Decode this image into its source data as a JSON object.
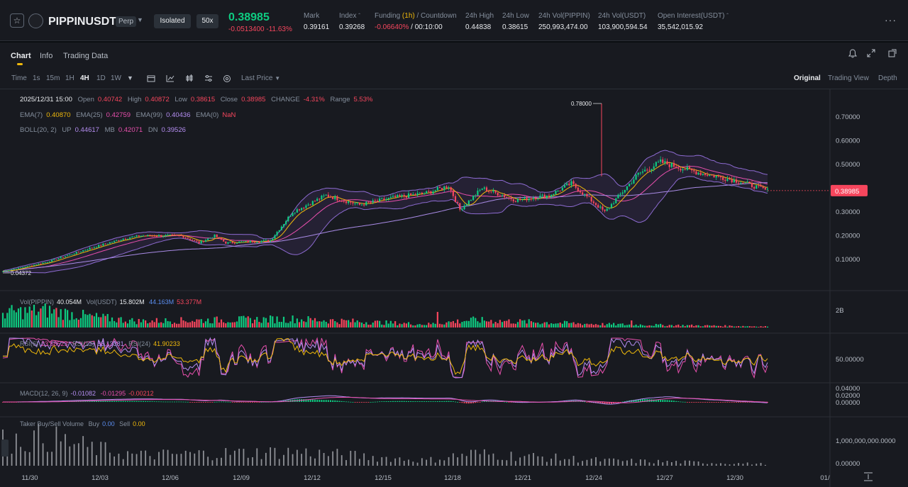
{
  "header": {
    "symbol": "PIPPINUSDT",
    "contract_type": "Perp",
    "margin_mode": "Isolated",
    "leverage": "50x",
    "last_price": "0.38985",
    "change": "-0.0513400 -11.63%",
    "stats": [
      {
        "label": "Mark",
        "value": "0.39161"
      },
      {
        "label": "Index",
        "value": "0.39268"
      },
      {
        "label": "Funding",
        "label_hl": "(1h)",
        "label_tail": "/ Countdown",
        "value_red": "-0.06640%",
        "value_tail": "/ 00:10:00"
      },
      {
        "label": "24h High",
        "value": "0.44838"
      },
      {
        "label": "24h Low",
        "value": "0.38615"
      },
      {
        "label": "24h Vol(PIPPIN)",
        "value": "250,993,474.00"
      },
      {
        "label": "24h Vol(USDT)",
        "value": "103,900,594.54"
      },
      {
        "label": "Open Interest(USDT)",
        "value": "35,542,015.92"
      }
    ]
  },
  "tabs": [
    "Chart",
    "Info",
    "Trading Data"
  ],
  "toolbar": {
    "intervals": [
      "Time",
      "1s",
      "15m",
      "1H",
      "4H",
      "1D",
      "1W"
    ],
    "active_interval": "4H",
    "price_type": "Last Price",
    "views": [
      "Original",
      "Trading View",
      "Depth"
    ]
  },
  "ohlc": {
    "time": "2025/12/31 15:00",
    "open_label": "Open",
    "open": "0.40742",
    "high_label": "High",
    "high": "0.40872",
    "low_label": "Low",
    "low": "0.38615",
    "close_label": "Close",
    "close": "0.38985",
    "change_label": "CHANGE",
    "change": "-4.31%",
    "range_label": "Range",
    "range": "5.53%"
  },
  "ema": {
    "l7": "EMA(7)",
    "v7": "0.40870",
    "l25": "EMA(25)",
    "v25": "0.42759",
    "l99": "EMA(99)",
    "v99": "0.40436",
    "l0": "EMA(0)",
    "v0": "NaN"
  },
  "boll": {
    "label": "BOLL(20, 2)",
    "up_label": "UP",
    "up": "0.44617",
    "mb_label": "MB",
    "mb": "0.42071",
    "dn_label": "DN",
    "dn": "0.39526"
  },
  "volume_legend": {
    "l1": "Vol(PIPPIN)",
    "v1": "40.054M",
    "l2": "Vol(USDT)",
    "v2": "15.802M",
    "v3": "44.163M",
    "v4": "53.377M"
  },
  "rsi_legend": {
    "l6": "RSI(6)",
    "v6": "23.68523",
    "l12": "RSI(12)",
    "v12": "33.13381",
    "l24": "RSI(24)",
    "v24": "41.90233"
  },
  "macd_legend": {
    "label": "MACD(12, 26, 9)",
    "v1": "-0.01082",
    "v2": "-0.01295",
    "v3": "-0.00212"
  },
  "taker_legend": {
    "label": "Taker Buy/Sell Volume",
    "buy_label": "Buy",
    "buy": "0.00",
    "sell_label": "Sell",
    "sell": "0.00"
  },
  "chart_data": {
    "type": "candlestick",
    "price_axis_ticks": [
      "0.70000",
      "0.60000",
      "0.50000",
      "0.40000",
      "0.30000",
      "0.20000",
      "0.10000"
    ],
    "price_axis_values": [
      0.7,
      0.6,
      0.5,
      0.4,
      0.3,
      0.2,
      0.1
    ],
    "volume_axis_tick": "2B",
    "rsi_axis_tick": "50.00000",
    "macd_axis_ticks": [
      "0.04000",
      "0.02000",
      "0.00000"
    ],
    "taker_axis_ticks": [
      "1,000,000,000.0000",
      "0.00000"
    ],
    "x_ticks": [
      "11/30",
      "12/03",
      "12/06",
      "12/09",
      "12/12",
      "12/15",
      "12/18",
      "12/21",
      "12/24",
      "12/27",
      "12/30",
      "01/"
    ],
    "current_price": "0.38985",
    "high_marker": "0.78000",
    "low_marker": "0.04372",
    "close_anchors": [
      [
        0,
        0.05
      ],
      [
        20,
        0.09
      ],
      [
        40,
        0.15
      ],
      [
        55,
        0.19
      ],
      [
        62,
        0.2
      ],
      [
        80,
        0.2
      ],
      [
        88,
        0.17
      ],
      [
        95,
        0.2
      ],
      [
        100,
        0.17
      ],
      [
        120,
        0.18
      ],
      [
        130,
        0.3
      ],
      [
        145,
        0.37
      ],
      [
        160,
        0.33
      ],
      [
        175,
        0.36
      ],
      [
        190,
        0.38
      ],
      [
        200,
        0.41
      ],
      [
        205,
        0.31
      ],
      [
        215,
        0.4
      ],
      [
        230,
        0.35
      ],
      [
        245,
        0.37
      ],
      [
        255,
        0.42
      ],
      [
        270,
        0.3
      ],
      [
        285,
        0.46
      ],
      [
        295,
        0.51
      ],
      [
        310,
        0.47
      ],
      [
        330,
        0.43
      ],
      [
        343,
        0.39
      ]
    ],
    "volume_anchors": [
      [
        0,
        0.7
      ],
      [
        20,
        0.8
      ],
      [
        40,
        0.5
      ],
      [
        60,
        0.3
      ],
      [
        130,
        0.4
      ],
      [
        190,
        0.15
      ],
      [
        210,
        0.35
      ],
      [
        270,
        0.15
      ],
      [
        343,
        0.05
      ]
    ]
  }
}
